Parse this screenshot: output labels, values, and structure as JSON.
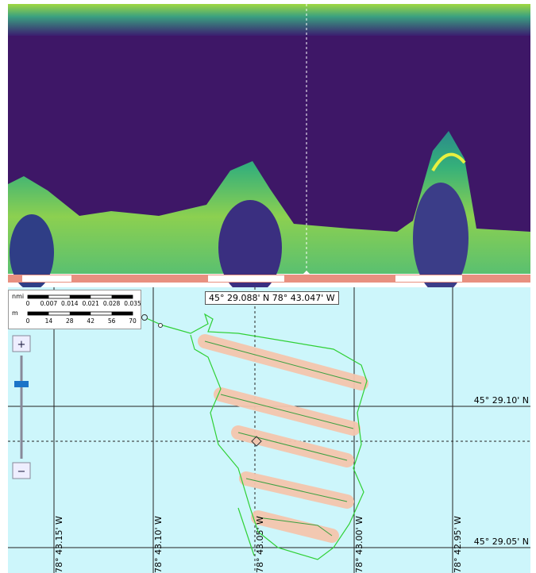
{
  "readout": "45° 29.088' N 78° 43.047' W",
  "scale": {
    "nmi_unit": "nmi",
    "nmi_ticks": [
      0,
      0.007,
      0.014,
      0.021,
      0.028,
      0.035
    ],
    "m_unit": "m",
    "m_ticks": [
      0,
      14,
      28,
      42,
      56,
      70
    ]
  },
  "grid": {
    "lat_labels": [
      "45° 29.10' N",
      "45° 29.05' N"
    ],
    "lon_labels": [
      "78° 43.15' W",
      "78° 43.10' W",
      "78° 43.05' W",
      "78° 43.00' W",
      "78° 42.95' W"
    ]
  }
}
